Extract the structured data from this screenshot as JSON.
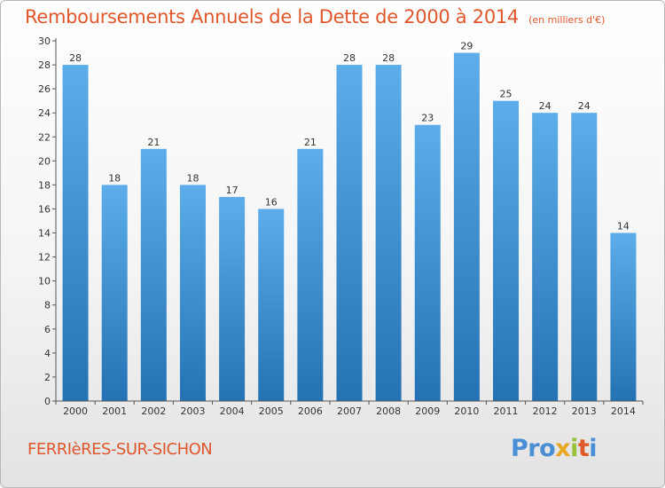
{
  "header": {
    "title": "Remboursements Annuels de la Dette de 2000 à 2014",
    "unit": "(en milliers d'€)"
  },
  "footer": {
    "commune": "FERRIèRES-SUR-SICHON",
    "logo_parts": [
      "Pro",
      "x",
      "i",
      "t",
      "i"
    ]
  },
  "colors": {
    "title": "#e0572c",
    "bar_top": "#5cadea",
    "bar_bottom": "#2472b3"
  },
  "chart_data": {
    "type": "bar",
    "title": "Remboursements Annuels de la Dette de 2000 à 2014",
    "xlabel": "",
    "ylabel": "",
    "categories": [
      "2000",
      "2001",
      "2002",
      "2003",
      "2004",
      "2005",
      "2006",
      "2007",
      "2008",
      "2009",
      "2010",
      "2011",
      "2012",
      "2013",
      "2014"
    ],
    "values": [
      28,
      18,
      21,
      18,
      17,
      16,
      21,
      28,
      28,
      23,
      29,
      25,
      24,
      24,
      14
    ],
    "ylim": [
      0,
      30
    ],
    "yticks": [
      0,
      2,
      4,
      6,
      8,
      10,
      12,
      14,
      16,
      18,
      20,
      22,
      24,
      26,
      28,
      30
    ],
    "grid": false,
    "legend": "none"
  }
}
